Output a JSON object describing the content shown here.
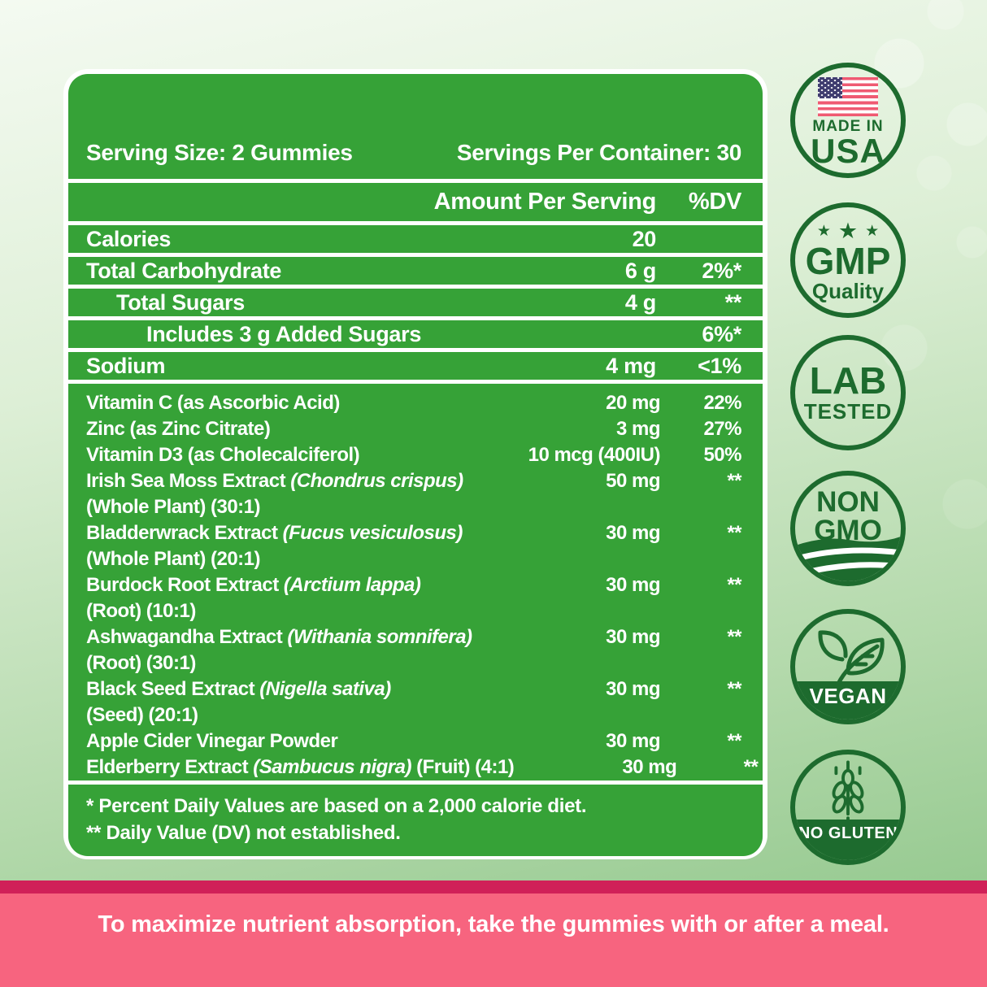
{
  "colors": {
    "panel_green": "#36a237",
    "badge_green": "#1d6b2e",
    "banner_pink": "#f7647f",
    "banner_stripe": "#d02058",
    "flag_red": "#ef5a72",
    "flag_navy": "#403d70"
  },
  "icons": {
    "star": "★"
  },
  "supplement_panel": {
    "serving_size": "Serving Size: 2 Gummies",
    "servings_per_container": "Servings Per Container: 30",
    "columns": {
      "amount": "Amount Per Serving",
      "dv": "%DV"
    },
    "basic_rows": [
      {
        "label": "Calories",
        "amount": "20",
        "dv": ""
      },
      {
        "label": "Total Carbohydrate",
        "amount": "6 g",
        "dv": "2%*"
      },
      {
        "label": "Total Sugars",
        "amount": "4 g",
        "dv": "**"
      },
      {
        "label": "Includes 3 g Added Sugars",
        "amount": "",
        "dv": "6%*"
      },
      {
        "label": "Sodium",
        "amount": "4 mg",
        "dv": "<1%"
      }
    ],
    "ingredient_rows": [
      {
        "name": "Vitamin C (as Ascorbic Acid)",
        "species": "",
        "suffix": "",
        "line2": "",
        "amount": "20 mg",
        "dv": "22%"
      },
      {
        "name": "Zinc (as Zinc Citrate)",
        "species": "",
        "suffix": "",
        "line2": "",
        "amount": "3 mg",
        "dv": "27%"
      },
      {
        "name": "Vitamin D3 (as Cholecalciferol)",
        "species": "",
        "suffix": "",
        "line2": "",
        "amount": "10 mcg (400IU)",
        "dv": "50%"
      },
      {
        "name": "Irish Sea Moss Extract",
        "species": "(Chondrus crispus)",
        "suffix": "",
        "line2": "(Whole Plant) (30:1)",
        "amount": "50 mg",
        "dv": "**"
      },
      {
        "name": "Bladderwrack Extract",
        "species": "(Fucus vesiculosus)",
        "suffix": "",
        "line2": "(Whole Plant) (20:1)",
        "amount": "30 mg",
        "dv": "**"
      },
      {
        "name": "Burdock Root Extract",
        "species": "(Arctium lappa)",
        "suffix": "",
        "line2": "(Root) (10:1)",
        "amount": "30 mg",
        "dv": "**"
      },
      {
        "name": "Ashwagandha Extract",
        "species": "(Withania somnifera)",
        "suffix": "",
        "line2": "(Root) (30:1)",
        "amount": "30 mg",
        "dv": "**"
      },
      {
        "name": "Black Seed Extract",
        "species": "(Nigella sativa)",
        "suffix": "",
        "line2": "(Seed) (20:1)",
        "amount": "30 mg",
        "dv": "**"
      },
      {
        "name": "Apple Cider Vinegar Powder",
        "species": "",
        "suffix": "",
        "line2": "",
        "amount": "30 mg",
        "dv": "**"
      },
      {
        "name": "Elderberry Extract",
        "species": "(Sambucus nigra)",
        "suffix": "(Fruit) (4:1)",
        "line2": "",
        "amount": "30 mg",
        "dv": "**"
      }
    ],
    "footnotes": [
      "* Percent Daily Values are based on a 2,000 calorie diet.",
      "** Daily Value (DV) not established."
    ]
  },
  "badges": {
    "made_in_usa": {
      "top": "MADE IN",
      "bottom": "USA"
    },
    "gmp": {
      "big": "GMP",
      "small": "Quality"
    },
    "lab": {
      "big": "LAB",
      "small": "TESTED"
    },
    "non_gmo": {
      "line1": "NON",
      "line2": "GMO"
    },
    "vegan": {
      "band": "VEGAN"
    },
    "no_gluten": {
      "band": "NO GLUTEN"
    }
  },
  "banner": {
    "text": "To maximize nutrient absorption, take the gummies with or after a meal."
  }
}
